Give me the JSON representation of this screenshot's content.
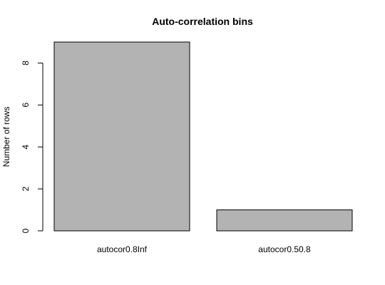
{
  "chart_data": {
    "type": "bar",
    "title": "Auto-correlation bins",
    "xlabel": "",
    "ylabel": "Number of rows",
    "categories": [
      "autocor0.8Inf",
      "autocor0.50.8"
    ],
    "values": [
      9,
      1
    ],
    "ylim": [
      0,
      9
    ],
    "yticks": [
      0,
      2,
      4,
      6,
      8
    ],
    "bar_color": "#b3b3b3",
    "grid": false,
    "legend": "none"
  }
}
